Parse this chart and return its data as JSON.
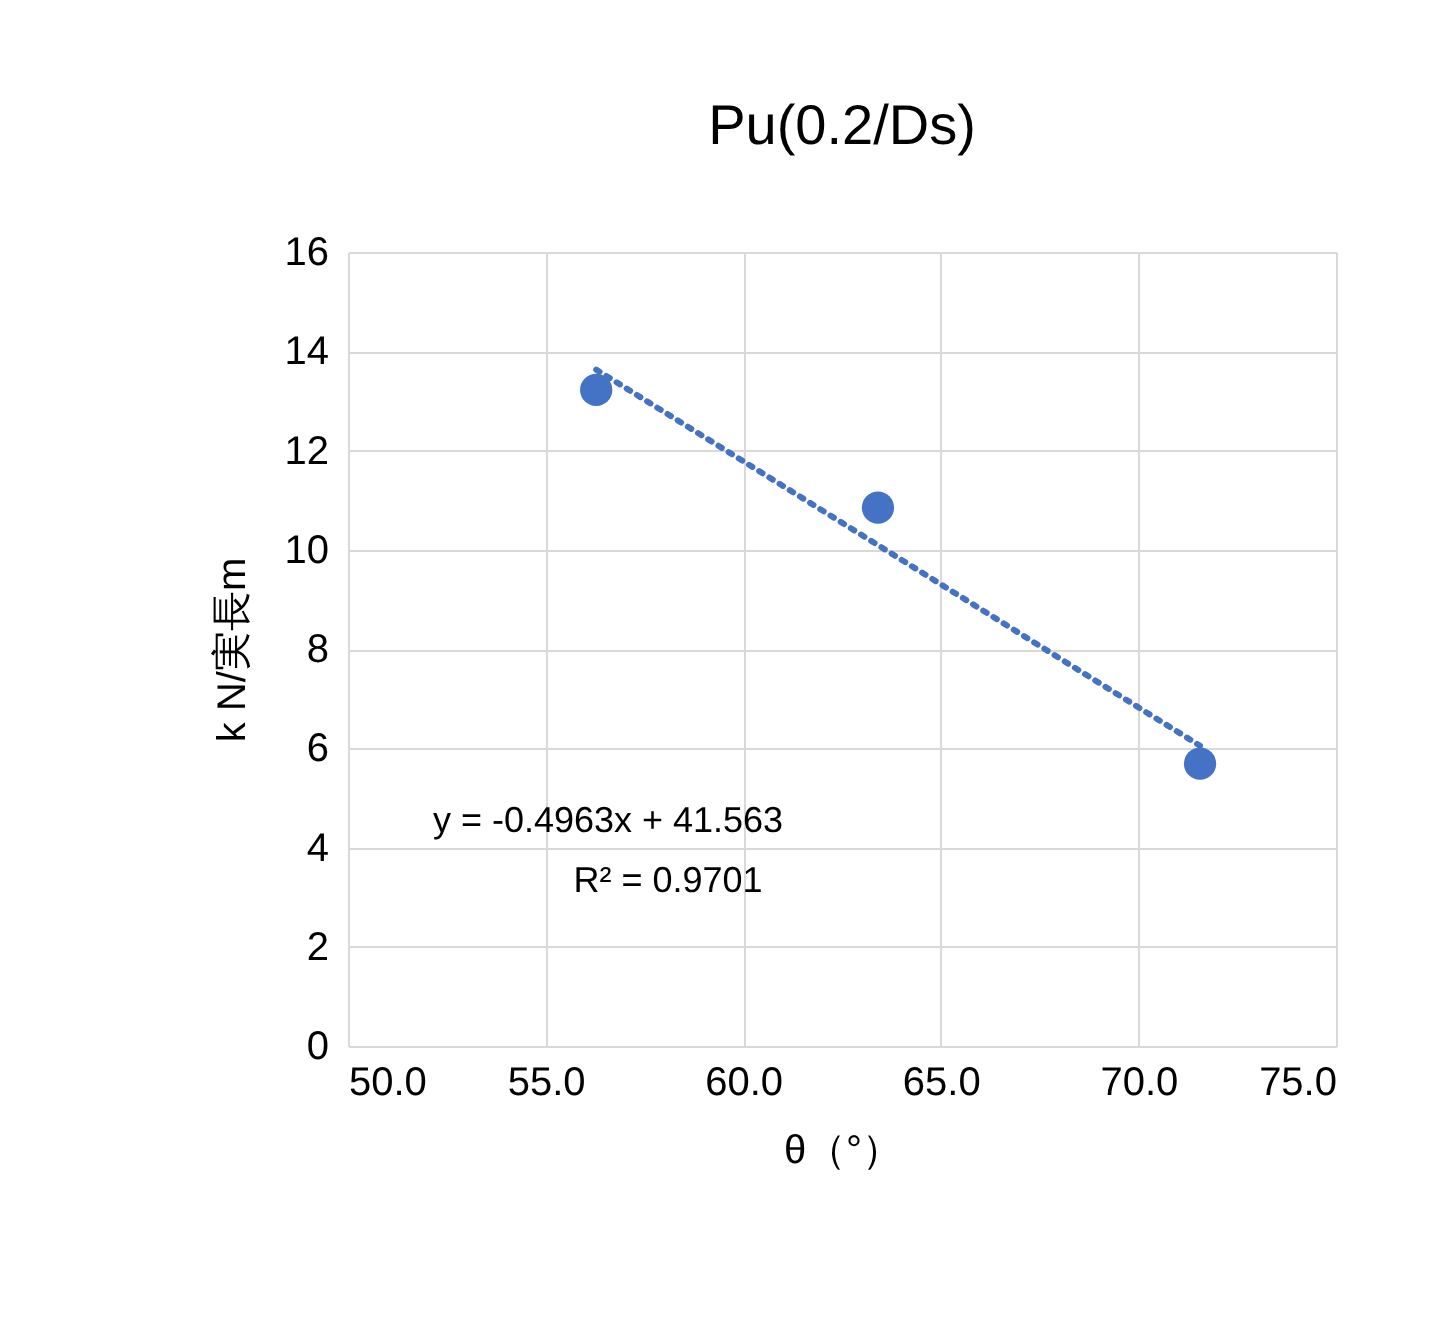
{
  "chart_data": {
    "type": "scatter",
    "title": "Pu(0.2/Ds)",
    "xlabel": "θ（°）",
    "ylabel": "k N/実長m",
    "series": [
      {
        "type": "scatter",
        "color": "#4472c4",
        "x": [
          56.28,
          63.41,
          71.56
        ],
        "values": [
          13.22,
          10.85,
          5.69
        ],
        "marker": "circle"
      },
      {
        "type": "line",
        "color": "#4472c4",
        "x": [
          56.28,
          71.56
        ],
        "values": [
          13.63,
          6.05
        ],
        "line_style": "dotted"
      }
    ],
    "annotations": [
      "y = -0.4963x + 41.563",
      "R² = 0.9701"
    ],
    "xlim": [
      50,
      75
    ],
    "xticks": [
      {
        "value": 50,
        "label": "50.0"
      },
      {
        "value": 55,
        "label": "55.0"
      },
      {
        "value": 60,
        "label": "60.0"
      },
      {
        "value": 65,
        "label": "65.0"
      },
      {
        "value": 70,
        "label": "70.0"
      },
      {
        "value": 75,
        "label": "75.0"
      }
    ],
    "ylim": [
      0,
      16
    ],
    "yticks": [
      0,
      2,
      4,
      6,
      8,
      10,
      12,
      14,
      16
    ],
    "grid": true
  }
}
